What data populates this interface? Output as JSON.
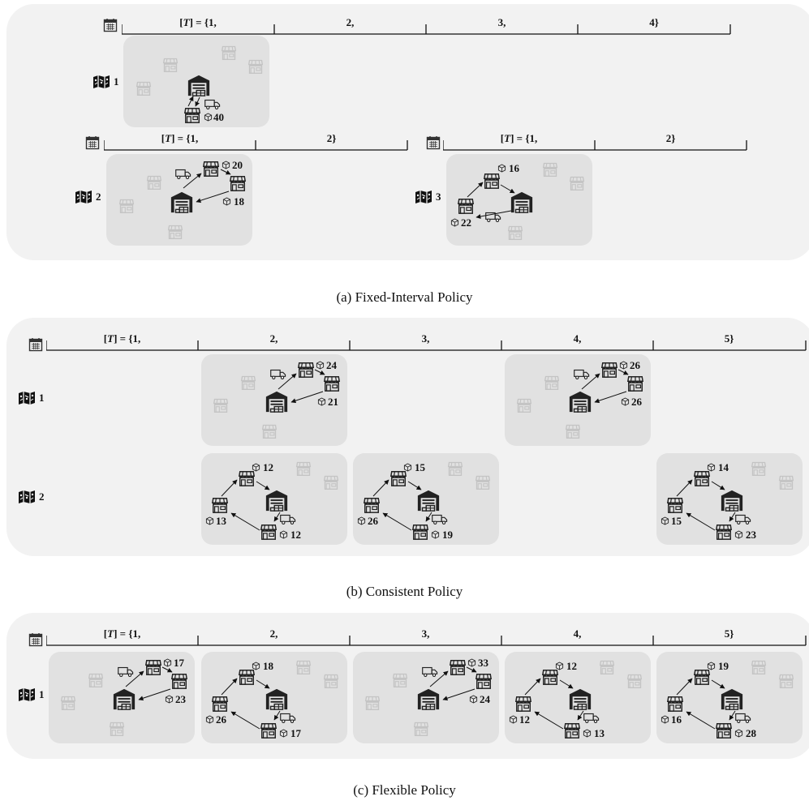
{
  "panels": {
    "a": {
      "caption": "(a)  Fixed-Interval Policy",
      "timeline_region1": [
        "[T] = {1,",
        "2,",
        "3,",
        "4}"
      ],
      "timeline_region2": [
        "[T] = {1,",
        "2}"
      ],
      "timeline_region3": [
        "[T] = {1,",
        "2}"
      ],
      "region_labels": [
        "1",
        "2",
        "3"
      ],
      "quantities": {
        "r1": [
          "40"
        ],
        "r2": [
          "20",
          "18"
        ],
        "r3": [
          "16",
          "22"
        ]
      }
    },
    "b": {
      "caption": "(b)  Consistent Policy",
      "timeline": [
        "[T] = {1,",
        "2,",
        "3,",
        "4,",
        "5}"
      ],
      "region_labels": [
        "1",
        "2"
      ],
      "quantities": {
        "r1_t2": [
          "24",
          "21"
        ],
        "r1_t4": [
          "26",
          "26"
        ],
        "r2_t2": [
          "12",
          "13",
          "12"
        ],
        "r2_t3": [
          "15",
          "26",
          "19"
        ],
        "r2_t5": [
          "14",
          "15",
          "23"
        ]
      }
    },
    "c": {
      "caption": "(c)  Flexible Policy",
      "timeline": [
        "[T] = {1,",
        "2,",
        "3,",
        "4,",
        "5}"
      ],
      "region_labels": [
        "1"
      ],
      "quantities": {
        "t1": [
          "17",
          "23"
        ],
        "t2": [
          "18",
          "26",
          "17"
        ],
        "t3": [
          "33",
          "24"
        ],
        "t4": [
          "12",
          "12",
          "13"
        ],
        "t5": [
          "19",
          "16",
          "28"
        ]
      }
    }
  },
  "icons": [
    "calendar-icon",
    "map-icon",
    "warehouse-icon",
    "store-icon",
    "truck-icon",
    "package-icon"
  ]
}
